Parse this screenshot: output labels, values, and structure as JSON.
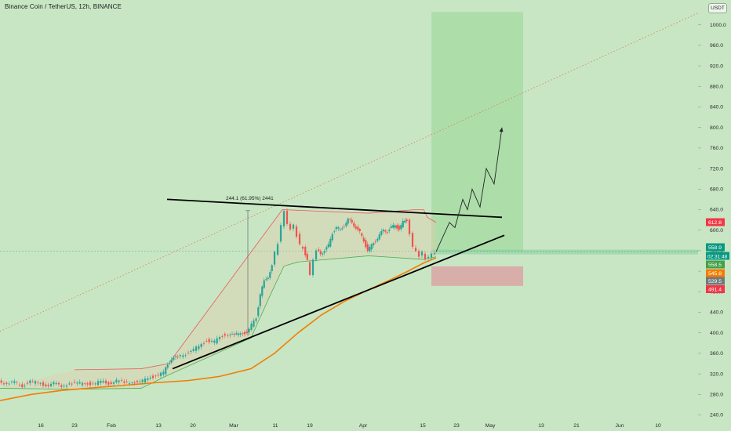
{
  "header": {
    "title": "Binance Coin / TetherUS, 12h, BINANCE",
    "currency_button": "USDT"
  },
  "chart_data": {
    "type": "line",
    "title": "Binance Coin / TetherUS, 12h, BINANCE",
    "xlabel": "",
    "ylabel": "",
    "ylim": [
      225,
      1030
    ],
    "x_tick_labels": [
      "16",
      "23",
      "Feb",
      "13",
      "20",
      "Mar",
      "11",
      "19",
      "Apr",
      "15",
      "23",
      "May",
      "13",
      "21",
      "Jun",
      "10"
    ],
    "y_tick_labels": [
      "240.0",
      "280.0",
      "320.0",
      "360.0",
      "400.0",
      "440.0",
      "480.0",
      "520.0",
      "560.0",
      "600.0",
      "640.0",
      "680.0",
      "720.0",
      "760.0",
      "800.0",
      "840.0",
      "880.0",
      "920.0",
      "960.0",
      "1000.0"
    ],
    "annotation": "244.1 (61.95%) 2441",
    "price_labels": [
      {
        "text": "612.8",
        "color": "#f23645"
      },
      {
        "text": "558.9",
        "color": "#089981"
      },
      {
        "text": "02:31:48",
        "color": "#089981"
      },
      {
        "text": "558.5",
        "color": "#43a047"
      },
      {
        "text": "545.8",
        "color": "#f57c00"
      },
      {
        "text": "529.5",
        "color": "#707a7a"
      },
      {
        "text": "491.4",
        "color": "#f23645"
      }
    ],
    "colors": {
      "up": "#26a69a",
      "down": "#ef5350",
      "ma": "#f57c00",
      "trendline": "#000000",
      "target_zone": "#a8dca4",
      "stop_zone": "#d9a7a7",
      "channel_upper": "#f23645",
      "channel_lower": "#4caf50"
    },
    "price_path": [
      [
        0,
        307
      ],
      [
        10,
        300
      ],
      [
        20,
        304
      ],
      [
        30,
        297
      ],
      [
        40,
        305
      ],
      [
        50,
        302
      ],
      [
        60,
        298
      ],
      [
        70,
        301
      ],
      [
        80,
        296
      ],
      [
        90,
        302
      ],
      [
        100,
        300
      ],
      [
        110,
        303
      ],
      [
        120,
        299
      ],
      [
        130,
        305
      ],
      [
        140,
        302
      ],
      [
        150,
        306
      ],
      [
        160,
        303
      ],
      [
        170,
        305
      ],
      [
        180,
        302
      ],
      [
        190,
        313
      ],
      [
        200,
        316
      ],
      [
        210,
        322
      ],
      [
        215,
        338
      ],
      [
        220,
        350
      ],
      [
        228,
        352
      ],
      [
        235,
        358
      ],
      [
        245,
        362
      ],
      [
        255,
        375
      ],
      [
        265,
        385
      ],
      [
        275,
        382
      ],
      [
        285,
        395
      ],
      [
        292,
        398
      ],
      [
        300,
        394
      ],
      [
        308,
        402
      ],
      [
        316,
        398
      ],
      [
        322,
        415
      ],
      [
        328,
        430
      ],
      [
        333,
        475
      ],
      [
        338,
        500
      ],
      [
        343,
        510
      ],
      [
        348,
        530
      ],
      [
        352,
        555
      ],
      [
        356,
        575
      ],
      [
        360,
        610
      ],
      [
        364,
        635
      ],
      [
        368,
        615
      ],
      [
        372,
        600
      ],
      [
        376,
        610
      ],
      [
        380,
        590
      ],
      [
        384,
        570
      ],
      [
        388,
        565
      ],
      [
        393,
        540
      ],
      [
        397,
        510
      ],
      [
        401,
        545
      ],
      [
        405,
        560
      ],
      [
        410,
        555
      ],
      [
        415,
        560
      ],
      [
        420,
        570
      ],
      [
        425,
        595
      ],
      [
        430,
        605
      ],
      [
        435,
        600
      ],
      [
        440,
        610
      ],
      [
        445,
        620
      ],
      [
        450,
        615
      ],
      [
        455,
        605
      ],
      [
        460,
        595
      ],
      [
        465,
        580
      ],
      [
        470,
        560
      ],
      [
        475,
        570
      ],
      [
        480,
        580
      ],
      [
        485,
        590
      ],
      [
        490,
        600
      ],
      [
        495,
        598
      ],
      [
        500,
        605
      ],
      [
        505,
        610
      ],
      [
        510,
        602
      ],
      [
        515,
        615
      ],
      [
        520,
        620
      ],
      [
        524,
        595
      ],
      [
        528,
        565
      ],
      [
        532,
        560
      ],
      [
        536,
        550
      ],
      [
        540,
        555
      ],
      [
        544,
        545
      ],
      [
        548,
        548
      ],
      [
        552,
        552
      ],
      [
        556,
        558
      ]
    ],
    "ma_path": [
      [
        0,
        268
      ],
      [
        40,
        280
      ],
      [
        80,
        288
      ],
      [
        120,
        293
      ],
      [
        160,
        298
      ],
      [
        200,
        303
      ],
      [
        240,
        307
      ],
      [
        280,
        315
      ],
      [
        320,
        330
      ],
      [
        350,
        360
      ],
      [
        380,
        400
      ],
      [
        410,
        435
      ],
      [
        440,
        462
      ],
      [
        470,
        484
      ],
      [
        500,
        505
      ],
      [
        520,
        520
      ],
      [
        540,
        536
      ],
      [
        556,
        546
      ]
    ],
    "projection_path": [
      [
        556,
        558
      ],
      [
        573,
        615
      ],
      [
        580,
        605
      ],
      [
        590,
        660
      ],
      [
        596,
        640
      ],
      [
        602,
        680
      ],
      [
        612,
        645
      ],
      [
        620,
        720
      ],
      [
        630,
        690
      ],
      [
        640,
        800
      ]
    ],
    "trendlines": [
      {
        "from": [
          213,
          660
        ],
        "to": [
          640,
          625
        ]
      },
      {
        "from": [
          220,
          330
        ],
        "to": [
          643,
          590
        ]
      }
    ],
    "dotted_line": {
      "from": [
        0,
        403
      ],
      "to": [
        890,
        1023
      ]
    },
    "channel_upper": [
      [
        95,
        328
      ],
      [
        180,
        330
      ],
      [
        215,
        340
      ],
      [
        360,
        640
      ],
      [
        470,
        633
      ],
      [
        530,
        640
      ],
      [
        540,
        640
      ],
      [
        545,
        625
      ],
      [
        556,
        615
      ]
    ],
    "channel_lower": [
      [
        0,
        292
      ],
      [
        90,
        290
      ],
      [
        180,
        292
      ],
      [
        215,
        318
      ],
      [
        320,
        390
      ],
      [
        345,
        475
      ],
      [
        362,
        530
      ],
      [
        380,
        538
      ],
      [
        395,
        540
      ],
      [
        470,
        550
      ],
      [
        540,
        543
      ],
      [
        556,
        548
      ]
    ],
    "target_zone": {
      "x": [
        550,
        667
      ],
      "y": [
        558.5,
        1025
      ]
    },
    "stop_zone": {
      "x": [
        550,
        667
      ],
      "y": [
        491.4,
        529.5
      ]
    },
    "measure_line": {
      "x": 316,
      "y": [
        394,
        638
      ]
    }
  }
}
